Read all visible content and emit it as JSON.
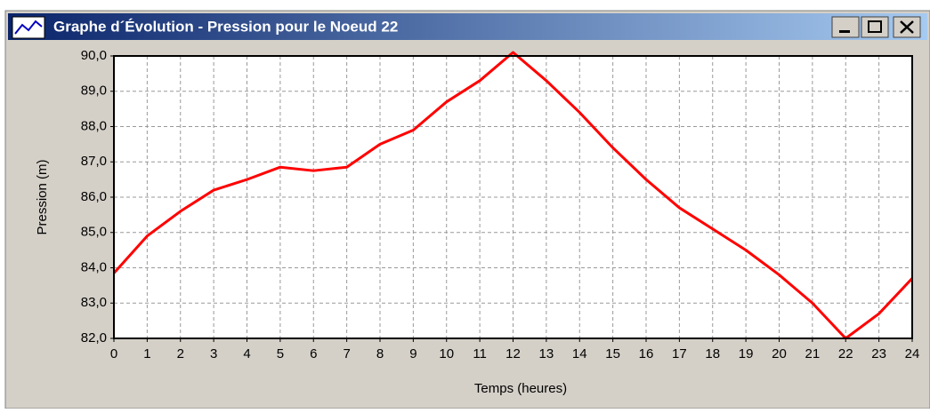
{
  "window": {
    "title": "Graphe d´Évolution - Pression pour le Noeud 22"
  },
  "chart_data": {
    "type": "line",
    "xlabel": "Temps (heures)",
    "ylabel": "Pression (m)",
    "x": [
      0,
      1,
      2,
      3,
      4,
      5,
      6,
      7,
      8,
      9,
      10,
      11,
      12,
      13,
      14,
      15,
      16,
      17,
      18,
      19,
      20,
      21,
      22,
      23,
      24
    ],
    "series": [
      {
        "name": "Pression",
        "color": "#ff0000",
        "values": [
          83.85,
          84.9,
          85.6,
          86.2,
          86.5,
          86.85,
          86.75,
          86.85,
          87.5,
          87.9,
          88.7,
          89.3,
          90.1,
          89.3,
          88.4,
          87.4,
          86.5,
          85.7,
          85.1,
          84.5,
          83.8,
          83.0,
          82.0,
          82.7,
          83.7
        ]
      }
    ],
    "xlim": [
      0,
      24
    ],
    "xticks": [
      0,
      1,
      2,
      3,
      4,
      5,
      6,
      7,
      8,
      9,
      10,
      11,
      12,
      13,
      14,
      15,
      16,
      17,
      18,
      19,
      20,
      21,
      22,
      23,
      24
    ],
    "ylim": [
      82,
      90
    ],
    "yticks": [
      {
        "value": 82,
        "label": "82,0"
      },
      {
        "value": 83,
        "label": "83,0"
      },
      {
        "value": 84,
        "label": "84,0"
      },
      {
        "value": 85,
        "label": "85,0"
      },
      {
        "value": 86,
        "label": "86,0"
      },
      {
        "value": 87,
        "label": "87,0"
      },
      {
        "value": 88,
        "label": "88,0"
      },
      {
        "value": 89,
        "label": "89,0"
      },
      {
        "value": 90,
        "label": "90,0"
      }
    ],
    "grid": true
  }
}
